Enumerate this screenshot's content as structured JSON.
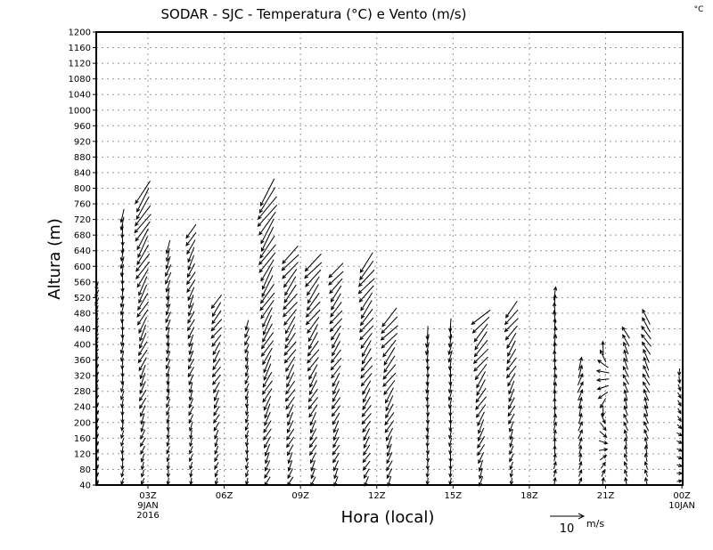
{
  "chart_data": {
    "type": "vector",
    "title": "SODAR - SJC - Temperatura (°C) e Vento (m/s)",
    "corner_label": "°C",
    "xlabel": "Hora (local)",
    "ylabel": "Altura (m)",
    "ylim": [
      40,
      1200
    ],
    "yticks": [
      40,
      80,
      120,
      160,
      200,
      240,
      280,
      320,
      360,
      400,
      440,
      480,
      520,
      560,
      600,
      640,
      680,
      720,
      760,
      800,
      840,
      880,
      920,
      960,
      1000,
      1040,
      1080,
      1120,
      1160,
      1200
    ],
    "xlim_hours": [
      1.0,
      24.0
    ],
    "xticks": [
      {
        "hour": 3,
        "label": "03Z",
        "sub1": "9JAN",
        "sub2": "2016"
      },
      {
        "hour": 6,
        "label": "06Z"
      },
      {
        "hour": 9,
        "label": "09Z"
      },
      {
        "hour": 12,
        "label": "12Z"
      },
      {
        "hour": 15,
        "label": "15Z"
      },
      {
        "hour": 18,
        "label": "18Z"
      },
      {
        "hour": 21,
        "label": "21Z"
      },
      {
        "hour": 24,
        "label": "00Z",
        "sub1": "10JAN"
      }
    ],
    "legend": {
      "value": "10",
      "unit": "m/s"
    },
    "level_step_m": 20,
    "columns": [
      {
        "hour": 1.0,
        "top": 560,
        "dir_low": 160,
        "dir_high": 200,
        "spd_low": 1.5,
        "spd_high": 2.5
      },
      {
        "hour": 2.0,
        "top": 740,
        "dir_low": 190,
        "dir_high": 185,
        "spd_low": 2,
        "spd_high": 4
      },
      {
        "hour": 2.8,
        "top": 800,
        "dir_low": 200,
        "dir_high": 215,
        "spd_low": 2,
        "spd_high": 8
      },
      {
        "hour": 3.8,
        "top": 660,
        "dir_low": 190,
        "dir_high": 200,
        "spd_low": 2,
        "spd_high": 4
      },
      {
        "hour": 4.7,
        "top": 700,
        "dir_low": 195,
        "dir_high": 210,
        "spd_low": 2,
        "spd_high": 5
      },
      {
        "hour": 5.7,
        "top": 520,
        "dir_low": 200,
        "dir_high": 220,
        "spd_low": 2,
        "spd_high": 5
      },
      {
        "hour": 6.9,
        "top": 450,
        "dir_low": 190,
        "dir_high": 200,
        "spd_low": 2,
        "spd_high": 3
      },
      {
        "hour": 7.7,
        "top": 800,
        "dir_low": 205,
        "dir_high": 215,
        "spd_low": 3,
        "spd_high": 9
      },
      {
        "hour": 8.6,
        "top": 640,
        "dir_low": 205,
        "dir_high": 220,
        "spd_low": 3,
        "spd_high": 7
      },
      {
        "hour": 9.5,
        "top": 620,
        "dir_low": 205,
        "dir_high": 220,
        "spd_low": 3,
        "spd_high": 7
      },
      {
        "hour": 10.4,
        "top": 600,
        "dir_low": 205,
        "dir_high": 220,
        "spd_low": 3,
        "spd_high": 6
      },
      {
        "hour": 11.6,
        "top": 620,
        "dir_low": 210,
        "dir_high": 220,
        "spd_low": 3,
        "spd_high": 7
      },
      {
        "hour": 12.5,
        "top": 480,
        "dir_low": 200,
        "dir_high": 225,
        "spd_low": 3,
        "spd_high": 7
      },
      {
        "hour": 14.0,
        "top": 440,
        "dir_low": 180,
        "dir_high": 185,
        "spd_low": 2,
        "spd_high": 4
      },
      {
        "hour": 14.9,
        "top": 460,
        "dir_low": 185,
        "dir_high": 190,
        "spd_low": 2,
        "spd_high": 4
      },
      {
        "hour": 16.1,
        "top": 480,
        "dir_low": 200,
        "dir_high": 225,
        "spd_low": 3,
        "spd_high": 7
      },
      {
        "hour": 17.3,
        "top": 500,
        "dir_low": 195,
        "dir_high": 220,
        "spd_low": 2,
        "spd_high": 6
      },
      {
        "hour": 19.0,
        "top": 540,
        "dir_low": 10,
        "dir_high": 0,
        "spd_low": 2,
        "spd_high": 4
      },
      {
        "hour": 20.0,
        "top": 360,
        "dir_low": 15,
        "dir_high": 20,
        "spd_low": 2,
        "spd_high": 4
      },
      {
        "hour": 20.9,
        "top": 390,
        "dir_low": 0,
        "dir_high": 350,
        "spd_low": 2,
        "spd_high": 4
      },
      {
        "hour": 21.8,
        "top": 440,
        "dir_low": 345,
        "dir_high": 335,
        "spd_low": 2,
        "spd_high": 4
      },
      {
        "hour": 22.6,
        "top": 480,
        "dir_low": 350,
        "dir_high": 325,
        "spd_low": 2,
        "spd_high": 5
      },
      {
        "hour": 23.9,
        "top": 340,
        "dir_low": 90,
        "dir_high": 180,
        "spd_low": 1.5,
        "spd_high": 2
      }
    ]
  }
}
